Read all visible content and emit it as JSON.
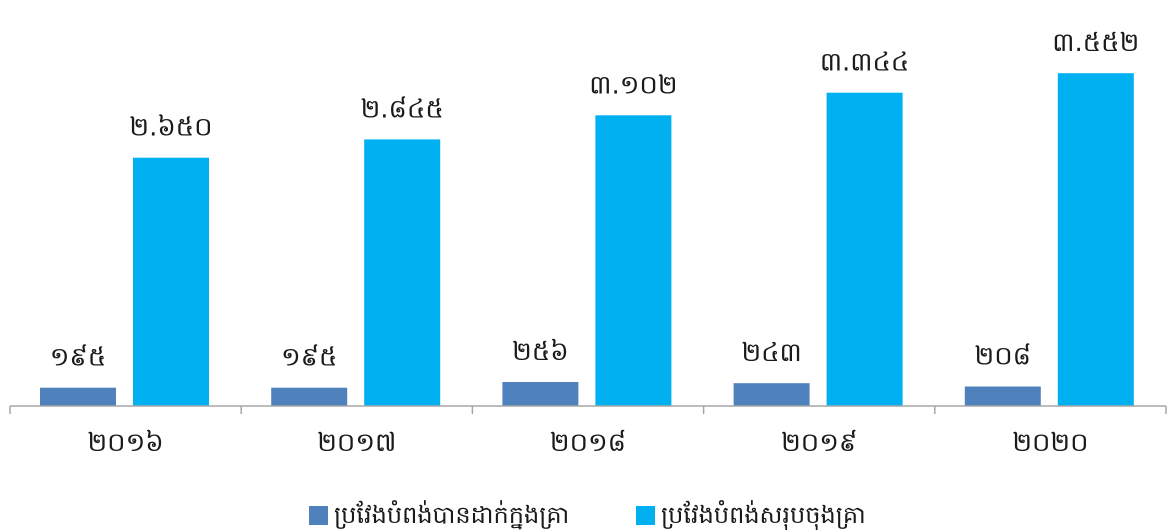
{
  "chart_data": {
    "type": "bar",
    "categories": [
      "២០១៦",
      "២០១៧",
      "២០១៨",
      "២០១៩",
      "២០២០"
    ],
    "series": [
      {
        "name": "ប្រវែងបំពង់បានដាក់ក្នុងគ្រា",
        "values": [
          195,
          195,
          256,
          243,
          208
        ],
        "labels": [
          "១៩៥",
          "១៩៥",
          "២៥៦",
          "២៤៣",
          "២០៨"
        ],
        "color": "#4f81bd"
      },
      {
        "name": "ប្រវែងបំពង់សរុបចុងគ្រា",
        "values": [
          2650,
          2845,
          3102,
          3344,
          3552
        ],
        "labels": [
          "២.៦៥០",
          "២.៨៤៥",
          "៣.១០២",
          "៣.៣៤៤",
          "៣.៥៥២"
        ],
        "color": "#00b0f0"
      }
    ],
    "ylim": [
      0,
      3800
    ],
    "grid": false,
    "legend_position": "bottom",
    "axis_color": "#a6a6a6"
  }
}
